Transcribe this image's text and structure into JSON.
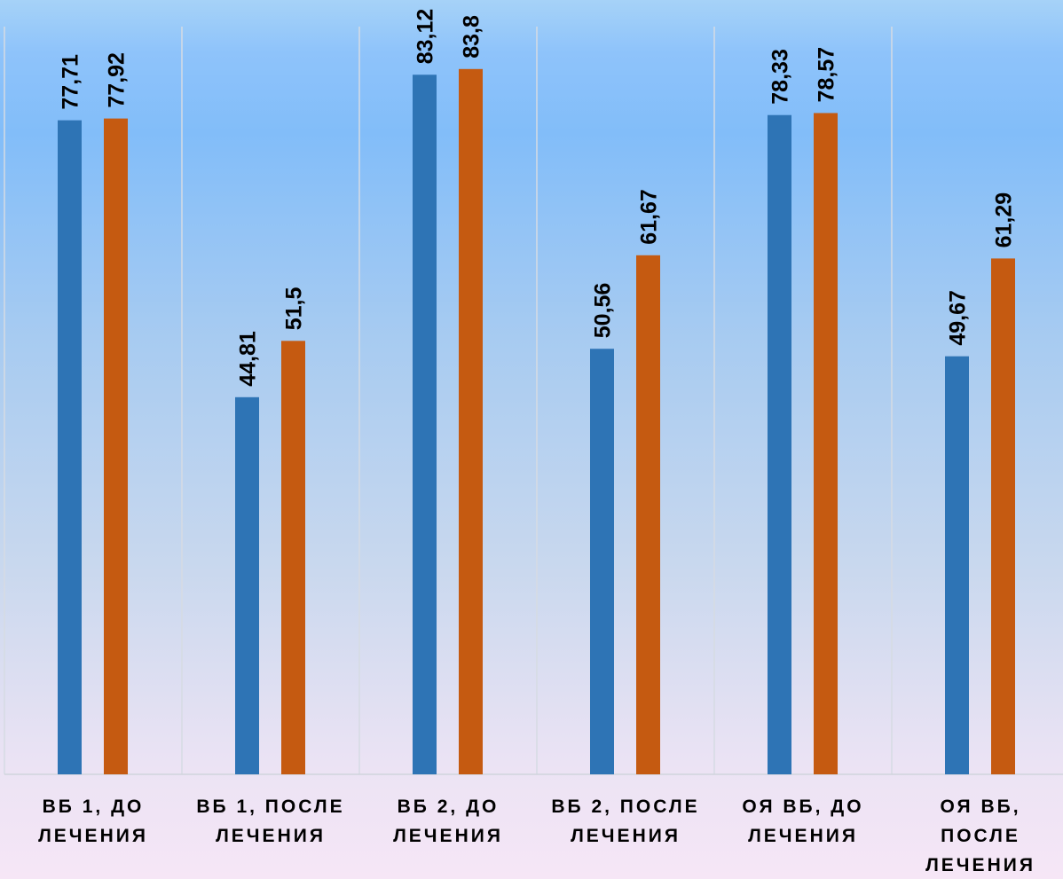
{
  "chart_data": {
    "type": "bar",
    "categories": [
      [
        "ВБ 1, ДО",
        "ЛЕЧЕНИЯ"
      ],
      [
        "ВБ 1, ПОСЛЕ",
        "ЛЕЧЕНИЯ"
      ],
      [
        "ВБ 2, ДО",
        "ЛЕЧЕНИЯ"
      ],
      [
        "ВБ 2, ПОСЛЕ",
        "ЛЕЧЕНИЯ"
      ],
      [
        "ОЯ ВБ, ДО",
        "ЛЕЧЕНИЯ"
      ],
      [
        "ОЯ ВБ,",
        "ПОСЛЕ",
        "ЛЕЧЕНИЯ"
      ]
    ],
    "series": [
      {
        "color": "#2e74b5",
        "values": [
          77.71,
          44.81,
          83.12,
          50.56,
          78.33,
          49.67
        ],
        "labels": [
          "77,71",
          "44,81",
          "83,12",
          "50,56",
          "78,33",
          "49,67"
        ]
      },
      {
        "color": "#c55a11",
        "values": [
          77.92,
          51.5,
          83.8,
          61.67,
          78.57,
          61.29
        ],
        "labels": [
          "77,92",
          "51,5",
          "83,8",
          "61,67",
          "78,57",
          "61,29"
        ]
      }
    ],
    "title": "",
    "xlabel": "",
    "ylabel": "",
    "ylim": [
      0,
      92
    ],
    "grid": "vertical category separators",
    "legend": "none"
  }
}
